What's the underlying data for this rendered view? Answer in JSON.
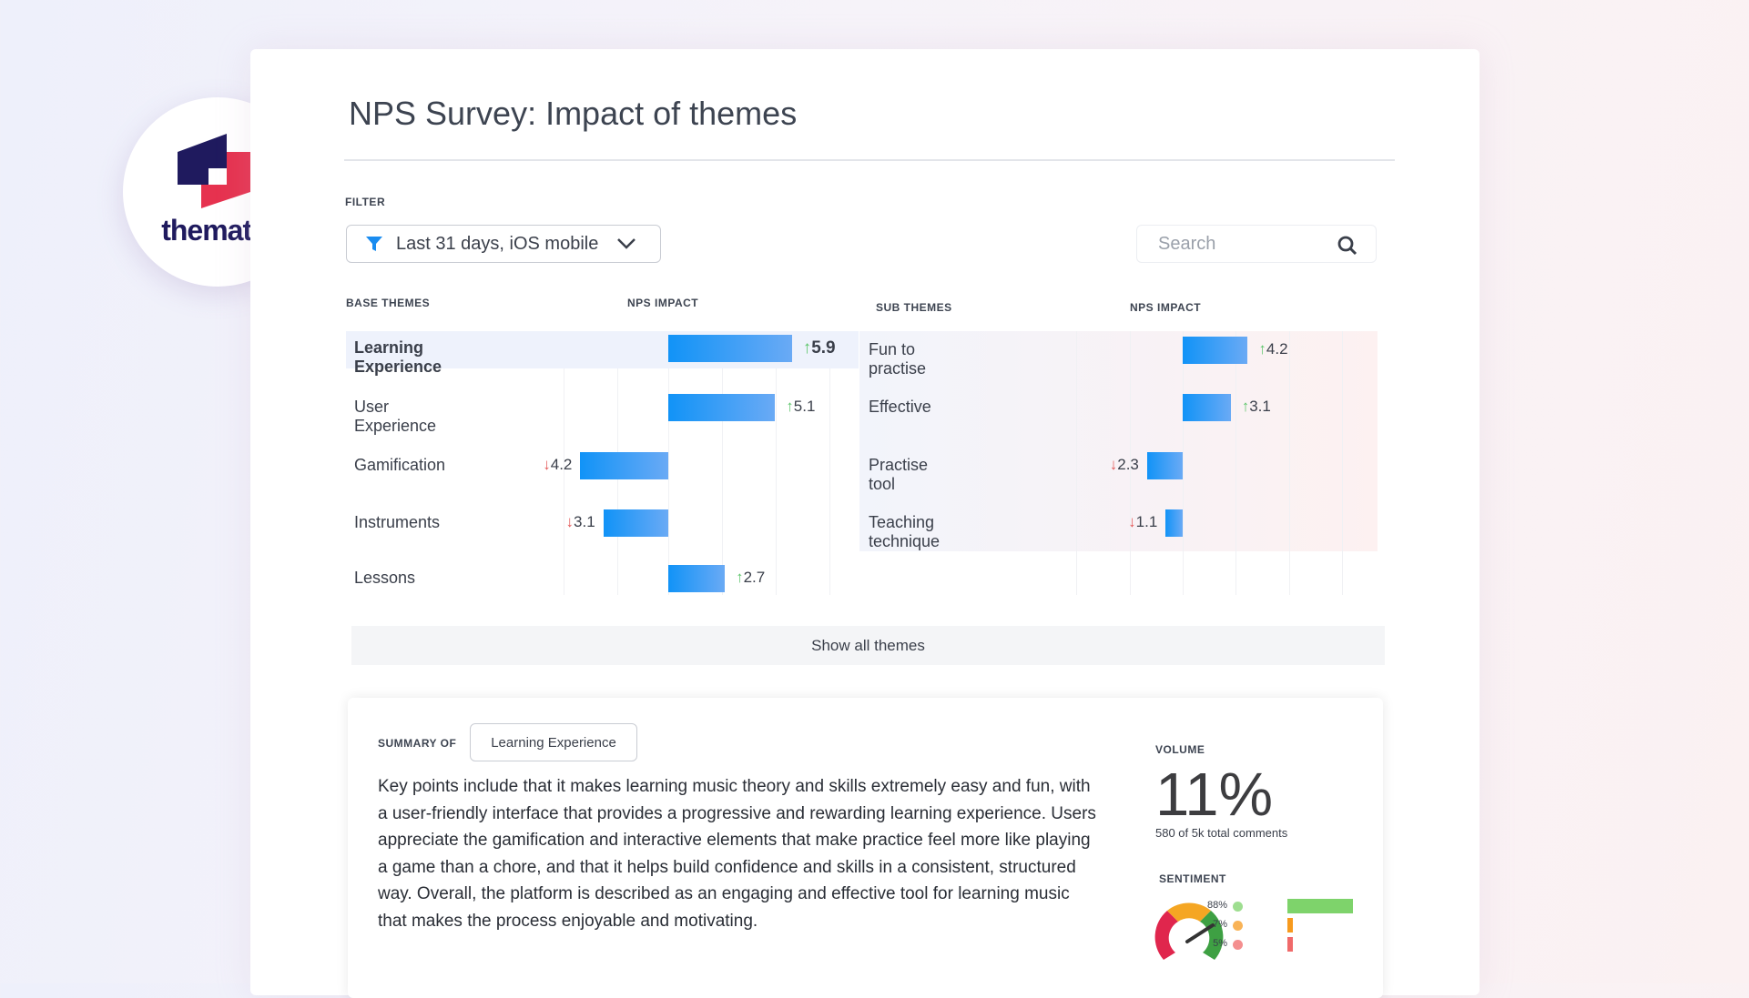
{
  "logo": {
    "text": "thematic",
    "colors": {
      "navy": "#1f1a5e",
      "red": "#e6324f"
    }
  },
  "title": "NPS Survey: Impact of themes",
  "filter": {
    "label": "FILTER",
    "value": "Last 31 days, iOS mobile",
    "icon": "funnel-icon",
    "chevron": "chevron-down-icon"
  },
  "search": {
    "placeholder": "Search",
    "icon": "search-icon"
  },
  "base": {
    "header": "BASE THEMES",
    "impact_header": "NPS IMPACT",
    "items": [
      {
        "label": "Learning Experience",
        "value": 5.9,
        "direction": "up",
        "display": "5.9",
        "selected": true
      },
      {
        "label": "User Experience",
        "value": 5.1,
        "direction": "up",
        "display": "5.1"
      },
      {
        "label": "Gamification",
        "value": -4.2,
        "direction": "down",
        "display": "4.2"
      },
      {
        "label": "Instruments",
        "value": -3.1,
        "direction": "down",
        "display": "3.1"
      },
      {
        "label": "Lessons",
        "value": 2.7,
        "direction": "up",
        "display": "2.7"
      }
    ]
  },
  "sub": {
    "header": "SUB THEMES",
    "impact_header": "NPS IMPACT",
    "items": [
      {
        "label": "Fun to practise",
        "value": 4.2,
        "direction": "up",
        "display": "4.2"
      },
      {
        "label": "Effective",
        "value": 3.1,
        "direction": "up",
        "display": "3.1"
      },
      {
        "label": "Practise tool",
        "value": -2.3,
        "direction": "down",
        "display": "2.3"
      },
      {
        "label": "Teaching technique",
        "value": -1.1,
        "direction": "down",
        "display": "1.1"
      }
    ]
  },
  "show_all": "Show all themes",
  "summary": {
    "label": "SUMMARY OF",
    "theme": "Learning Experience",
    "text": "Key points include that it makes learning music theory and skills extremely easy and fun, with a user-friendly interface that provides a progressive and rewarding learning experience. Users appreciate the gamification and interactive elements that make practice feel more like playing a game than a chore, and that it helps build confidence and skills in a consistent, structured way. Overall, the platform is described as an engaging and effective tool for learning music that makes the process enjoyable and motivating."
  },
  "volume": {
    "label": "VOLUME",
    "value": "11%",
    "detail": "580 of 5k total comments"
  },
  "sentiment": {
    "label": "SENTIMENT",
    "items": [
      {
        "label": "88%",
        "value": 88,
        "color": "#7ed36b",
        "face": "happy-face-icon"
      },
      {
        "label": "7%",
        "value": 7,
        "color": "#f79a1e",
        "face": "neutral-face-icon"
      },
      {
        "label": "5%",
        "value": 5,
        "color": "#f06a6a",
        "face": "sad-face-icon"
      }
    ]
  }
}
